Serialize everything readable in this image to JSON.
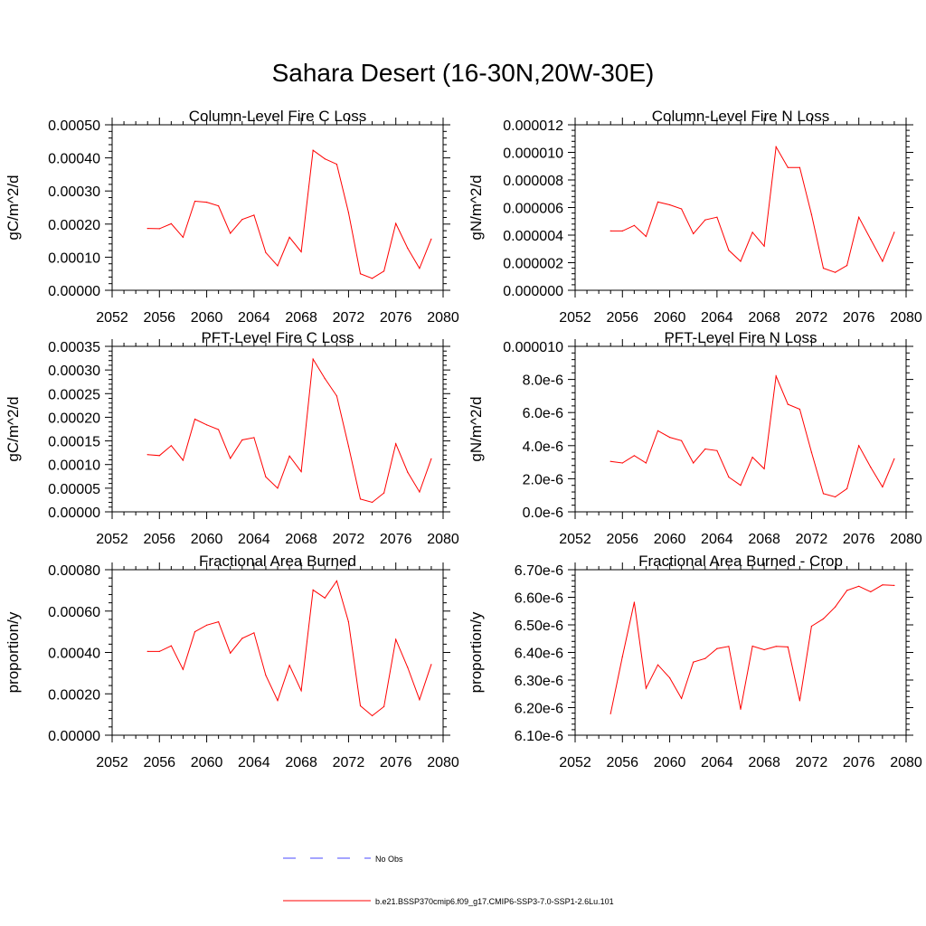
{
  "figure_title": "Sahara Desert (16-30N,20W-30E)",
  "colors": {
    "model": "#ff0000",
    "obs": "#4a4aff",
    "axis": "#000000"
  },
  "legend": [
    {
      "label": "No Obs",
      "style": "dashed",
      "color": "#4a4aff"
    },
    {
      "label": "b.e21.BSSP370cmip6.f09_g17.CMIP6-SSP3-7.0-SSP1-2.6Lu.101",
      "style": "solid",
      "color": "#ff0000"
    }
  ],
  "chart_data": [
    {
      "type": "line",
      "title": "Column-Level Fire C Loss",
      "ylabel": "gC/m^2/d",
      "xlim": [
        2052,
        2080
      ],
      "ylim": [
        0,
        0.0005
      ],
      "xticks": [
        "2052",
        "2056",
        "2060",
        "2064",
        "2068",
        "2072",
        "2076",
        "2080"
      ],
      "yticks": [
        "0.00000",
        "0.00010",
        "0.00020",
        "0.00030",
        "0.00040",
        "0.00050"
      ],
      "x": [
        2055,
        2056,
        2057,
        2058,
        2059,
        2060,
        2061,
        2062,
        2063,
        2064,
        2065,
        2066,
        2067,
        2068,
        2069,
        2070,
        2071,
        2072,
        2073,
        2074,
        2075,
        2076,
        2077,
        2078,
        2079
      ],
      "series": [
        {
          "values": [
            0.000187,
            0.000186,
            0.000201,
            0.00016,
            0.000269,
            0.000266,
            0.000255,
            0.000172,
            0.000214,
            0.000227,
            0.000114,
            7.4e-05,
            0.00016,
            0.000116,
            0.000423,
            0.000397,
            0.000381,
            0.000235,
            5e-05,
            3.6e-05,
            5.8e-05,
            0.000202,
            0.000127,
            6.6e-05,
            0.000155
          ]
        }
      ]
    },
    {
      "type": "line",
      "title": "Column-Level Fire N Loss",
      "ylabel": "gN/m^2/d",
      "xlim": [
        2052,
        2080
      ],
      "ylim": [
        0,
        1.2e-05
      ],
      "xticks": [
        "2052",
        "2056",
        "2060",
        "2064",
        "2068",
        "2072",
        "2076",
        "2080"
      ],
      "yticks": [
        "0.000000",
        "0.000002",
        "0.000004",
        "0.000006",
        "0.000008",
        "0.000010",
        "0.000012"
      ],
      "x": [
        2055,
        2056,
        2057,
        2058,
        2059,
        2060,
        2061,
        2062,
        2063,
        2064,
        2065,
        2066,
        2067,
        2068,
        2069,
        2070,
        2071,
        2072,
        2073,
        2074,
        2075,
        2076,
        2077,
        2078,
        2079
      ],
      "series": [
        {
          "values": [
            4.3e-06,
            4.3e-06,
            4.7e-06,
            3.9e-06,
            6.4e-06,
            6.2e-06,
            5.9e-06,
            4.1e-06,
            5.1e-06,
            5.3e-06,
            2.9e-06,
            2.1e-06,
            4.2e-06,
            3.2e-06,
            1.04e-05,
            8.9e-06,
            8.9e-06,
            5.5e-06,
            1.6e-06,
            1.3e-06,
            1.8e-06,
            5.3e-06,
            3.7e-06,
            2.1e-06,
            4.2e-06
          ]
        }
      ]
    },
    {
      "type": "line",
      "title": "PFT-Level Fire C Loss",
      "ylabel": "gC/m^2/d",
      "xlim": [
        2052,
        2080
      ],
      "ylim": [
        0,
        0.00035
      ],
      "xticks": [
        "2052",
        "2056",
        "2060",
        "2064",
        "2068",
        "2072",
        "2076",
        "2080"
      ],
      "yticks": [
        "0.00000",
        "0.00005",
        "0.00010",
        "0.00015",
        "0.00020",
        "0.00025",
        "0.00030",
        "0.00035"
      ],
      "x": [
        2055,
        2056,
        2057,
        2058,
        2059,
        2060,
        2061,
        2062,
        2063,
        2064,
        2065,
        2066,
        2067,
        2068,
        2069,
        2070,
        2071,
        2072,
        2073,
        2074,
        2075,
        2076,
        2077,
        2078,
        2079
      ],
      "series": [
        {
          "values": [
            0.000121,
            0.000119,
            0.00014,
            0.000109,
            0.000196,
            0.000184,
            0.000174,
            0.000113,
            0.000152,
            0.000157,
            7.4e-05,
            5e-05,
            0.000118,
            8.5e-05,
            0.000323,
            0.000282,
            0.000245,
            0.000139,
            2.7e-05,
            2e-05,
            4e-05,
            0.000144,
            8.4e-05,
            4.2e-05,
            0.000112
          ]
        }
      ]
    },
    {
      "type": "line",
      "title": "PFT-Level Fire N Loss",
      "ylabel": "gN/m^2/d",
      "xlim": [
        2052,
        2080
      ],
      "ylim": [
        0,
        1e-05
      ],
      "xticks": [
        "2052",
        "2056",
        "2060",
        "2064",
        "2068",
        "2072",
        "2076",
        "2080"
      ],
      "yticks": [
        "0.0e-6",
        "2.0e-6",
        "4.0e-6",
        "6.0e-6",
        "8.0e-6",
        "0.000010"
      ],
      "x": [
        2055,
        2056,
        2057,
        2058,
        2059,
        2060,
        2061,
        2062,
        2063,
        2064,
        2065,
        2066,
        2067,
        2068,
        2069,
        2070,
        2071,
        2072,
        2073,
        2074,
        2075,
        2076,
        2077,
        2078,
        2079
      ],
      "series": [
        {
          "values": [
            3.05e-06,
            2.95e-06,
            3.4e-06,
            2.95e-06,
            4.9e-06,
            4.5e-06,
            4.3e-06,
            2.95e-06,
            3.8e-06,
            3.7e-06,
            2.1e-06,
            1.6e-06,
            3.3e-06,
            2.6e-06,
            8.2e-06,
            6.5e-06,
            6.2e-06,
            3.6e-06,
            1.1e-06,
            9e-07,
            1.4e-06,
            4e-06,
            2.7e-06,
            1.5e-06,
            3.2e-06
          ]
        }
      ]
    },
    {
      "type": "line",
      "title": "Fractional Area Burned",
      "ylabel": "proportion/y",
      "xlim": [
        2052,
        2080
      ],
      "ylim": [
        0,
        0.0008
      ],
      "xticks": [
        "2052",
        "2056",
        "2060",
        "2064",
        "2068",
        "2072",
        "2076",
        "2080"
      ],
      "yticks": [
        "0.00000",
        "0.00020",
        "0.00040",
        "0.00060",
        "0.00080"
      ],
      "x": [
        2055,
        2056,
        2057,
        2058,
        2059,
        2060,
        2061,
        2062,
        2063,
        2064,
        2065,
        2066,
        2067,
        2068,
        2069,
        2070,
        2071,
        2072,
        2073,
        2074,
        2075,
        2076,
        2077,
        2078,
        2079
      ],
      "series": [
        {
          "values": [
            0.000405,
            0.000405,
            0.000432,
            0.000318,
            0.0005,
            0.000532,
            0.000548,
            0.000397,
            0.000468,
            0.000495,
            0.00029,
            0.000168,
            0.000338,
            0.000215,
            0.000702,
            0.000663,
            0.000746,
            0.000548,
            0.000142,
            9.4e-05,
            0.000138,
            0.000463,
            0.000328,
            0.000172,
            0.000342
          ]
        }
      ]
    },
    {
      "type": "line",
      "title": "Fractional Area Burned - Crop",
      "ylabel": "proportion/y",
      "xlim": [
        2052,
        2080
      ],
      "ylim": [
        6.1e-06,
        6.7e-06
      ],
      "xticks": [
        "2052",
        "2056",
        "2060",
        "2064",
        "2068",
        "2072",
        "2076",
        "2080"
      ],
      "yticks": [
        "6.10e-6",
        "6.20e-6",
        "6.30e-6",
        "6.40e-6",
        "6.50e-6",
        "6.60e-6",
        "6.70e-6"
      ],
      "x": [
        2055,
        2056,
        2057,
        2058,
        2059,
        2060,
        2061,
        2062,
        2063,
        2064,
        2065,
        2066,
        2067,
        2068,
        2069,
        2070,
        2071,
        2072,
        2073,
        2074,
        2075,
        2076,
        2077,
        2078,
        2079
      ],
      "series": [
        {
          "values": [
            6.178e-06,
            6.385e-06,
            6.582e-06,
            6.27e-06,
            6.355e-06,
            6.308e-06,
            6.233e-06,
            6.365e-06,
            6.378e-06,
            6.414e-06,
            6.422e-06,
            6.194e-06,
            6.423e-06,
            6.41e-06,
            6.422e-06,
            6.42e-06,
            6.225e-06,
            6.495e-06,
            6.522e-06,
            6.565e-06,
            6.625e-06,
            6.64e-06,
            6.62e-06,
            6.645e-06,
            6.643e-06
          ]
        }
      ]
    }
  ]
}
